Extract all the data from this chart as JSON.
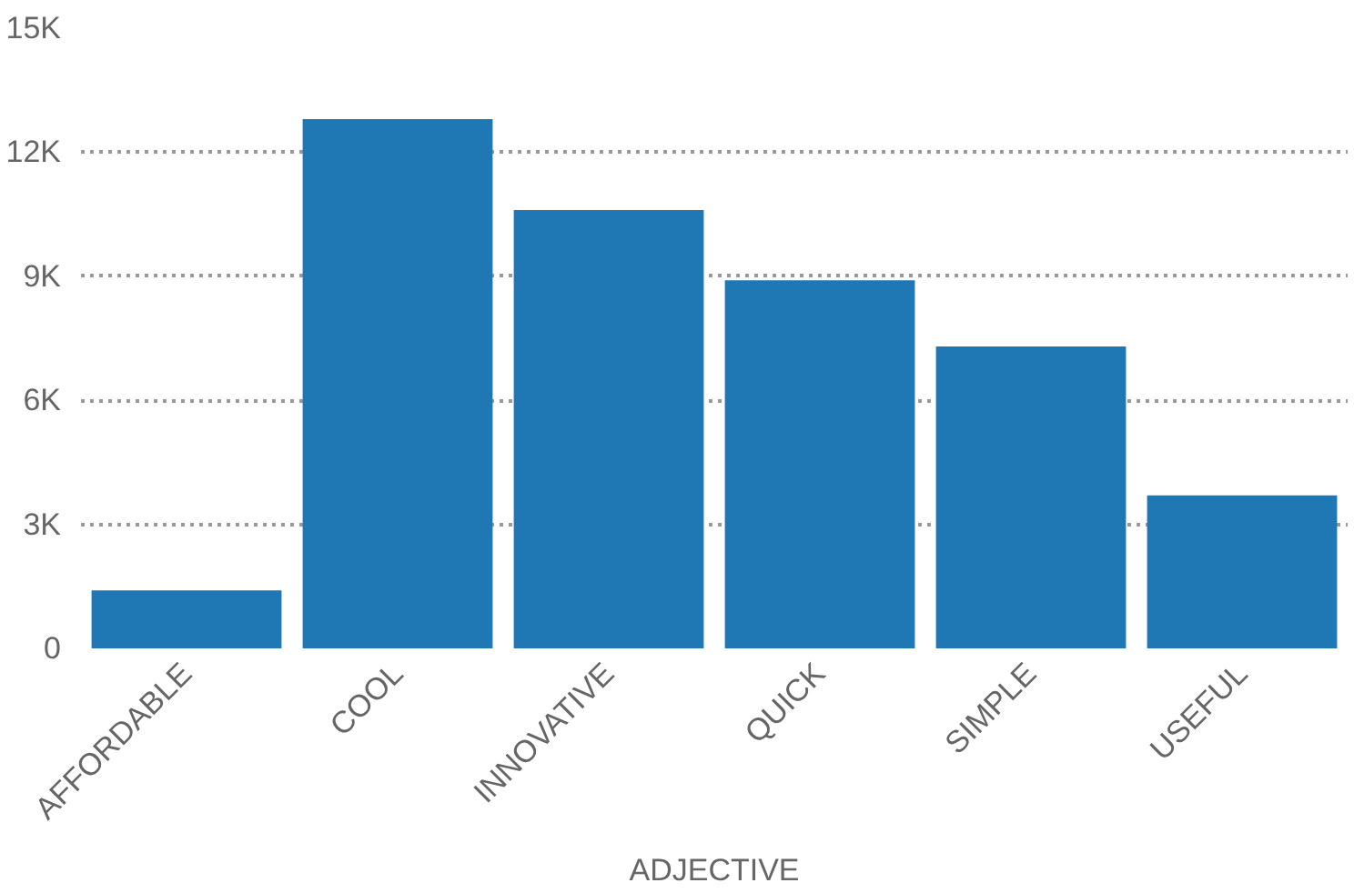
{
  "chart_data": {
    "type": "bar",
    "xlabel": "ADJECTIVE",
    "categories": [
      "AFFORDABLE",
      "COOL",
      "INNOVATIVE",
      "QUICK",
      "SIMPLE",
      "USEFUL"
    ],
    "values": [
      1400,
      12800,
      10600,
      8900,
      7300,
      3700
    ],
    "color": "#1f77b4",
    "ylim": [
      0,
      15000
    ],
    "yticks": [
      0,
      {
        "value": 3000,
        "label": "3K"
      },
      {
        "value": 6000,
        "label": "6K"
      },
      {
        "value": 9000,
        "label": "9K"
      },
      {
        "value": 12000,
        "label": "12K"
      },
      {
        "value": 15000,
        "label": "15K"
      }
    ],
    "grid": "y"
  }
}
